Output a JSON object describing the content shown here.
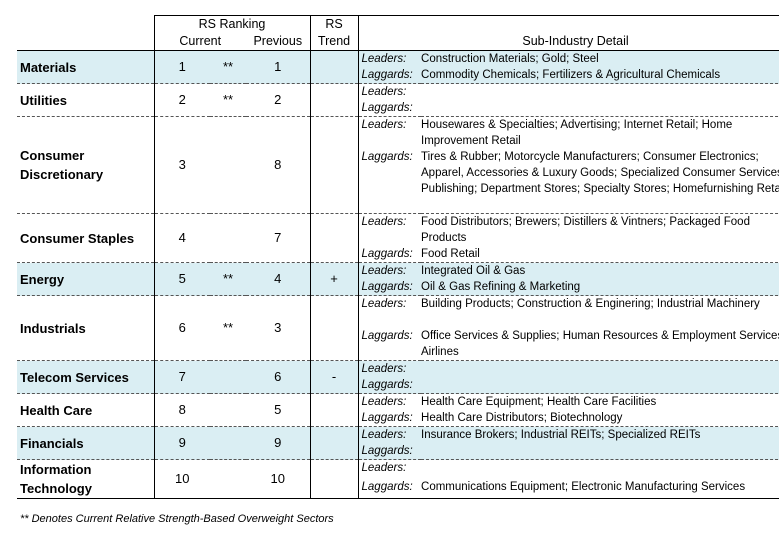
{
  "header": {
    "rs_ranking": "RS Ranking",
    "current": "Current",
    "previous": "Previous",
    "rs": "RS",
    "trend": "Trend",
    "sub_industry_detail": "Sub-Industry Detail"
  },
  "labels": {
    "leaders": "Leaders:",
    "laggards": "Laggards:"
  },
  "rows": [
    {
      "sector": "Materials",
      "current": "1",
      "stars": "**",
      "previous": "1",
      "trend": "",
      "leaders": "Construction Materials; Gold; Steel",
      "laggards": "Commodity Chemicals; Fertilizers & Agricultural Chemicals"
    },
    {
      "sector": "Utilities",
      "current": "2",
      "stars": "**",
      "previous": "2",
      "trend": "",
      "leaders": "",
      "laggards": ""
    },
    {
      "sector": "Consumer Discretionary",
      "current": "3",
      "stars": "",
      "previous": "8",
      "trend": "",
      "leaders": "Housewares & Specialties; Advertising; Internet Retail; Home Improvement Retail",
      "laggards": "Tires & Rubber; Motorcycle Manufacturers; Consumer Electronics; Apparel, Accessories & Luxury Goods; Specialized Consumer Services; Publishing; Department Stores; Specialty Stores; Homefurnishing Retail"
    },
    {
      "sector": "Consumer Staples",
      "current": "4",
      "stars": "",
      "previous": "7",
      "trend": "",
      "leaders": "Food Distributors; Brewers; Distillers & Vintners; Packaged Food Products",
      "laggards": "Food Retail"
    },
    {
      "sector": "Energy",
      "current": "5",
      "stars": "**",
      "previous": "4",
      "trend": "+",
      "leaders": "Integrated Oil & Gas",
      "laggards": "Oil & Gas Refining & Marketing"
    },
    {
      "sector": "Industrials",
      "current": "6",
      "stars": "**",
      "previous": "3",
      "trend": "",
      "leaders": "Building Products; Construction & Enginering; Industrial Machinery",
      "laggards": "Office Services & Supplies; Human Resources & Employment Services; Airlines"
    },
    {
      "sector": "Telecom Services",
      "current": "7",
      "stars": "",
      "previous": "6",
      "trend": "-",
      "leaders": "",
      "laggards": ""
    },
    {
      "sector": "Health Care",
      "current": "8",
      "stars": "",
      "previous": "5",
      "trend": "",
      "leaders": "Health Care Equipment; Health Care Facilities",
      "laggards": "Health Care Distributors; Biotechnology"
    },
    {
      "sector": "Financials",
      "current": "9",
      "stars": "",
      "previous": "9",
      "trend": "",
      "leaders": "Insurance Brokers; Industrial REITs; Specialized REITs",
      "laggards": ""
    },
    {
      "sector": "Information Technology",
      "current": "10",
      "stars": "",
      "previous": "10",
      "trend": "",
      "leaders": "",
      "laggards": "Communications Equipment; Electronic Manufacturing Services"
    }
  ],
  "footnote": "** Denotes Current Relative Strength-Based Overweight Sectors",
  "colors": {
    "shade": "#daeef3"
  }
}
